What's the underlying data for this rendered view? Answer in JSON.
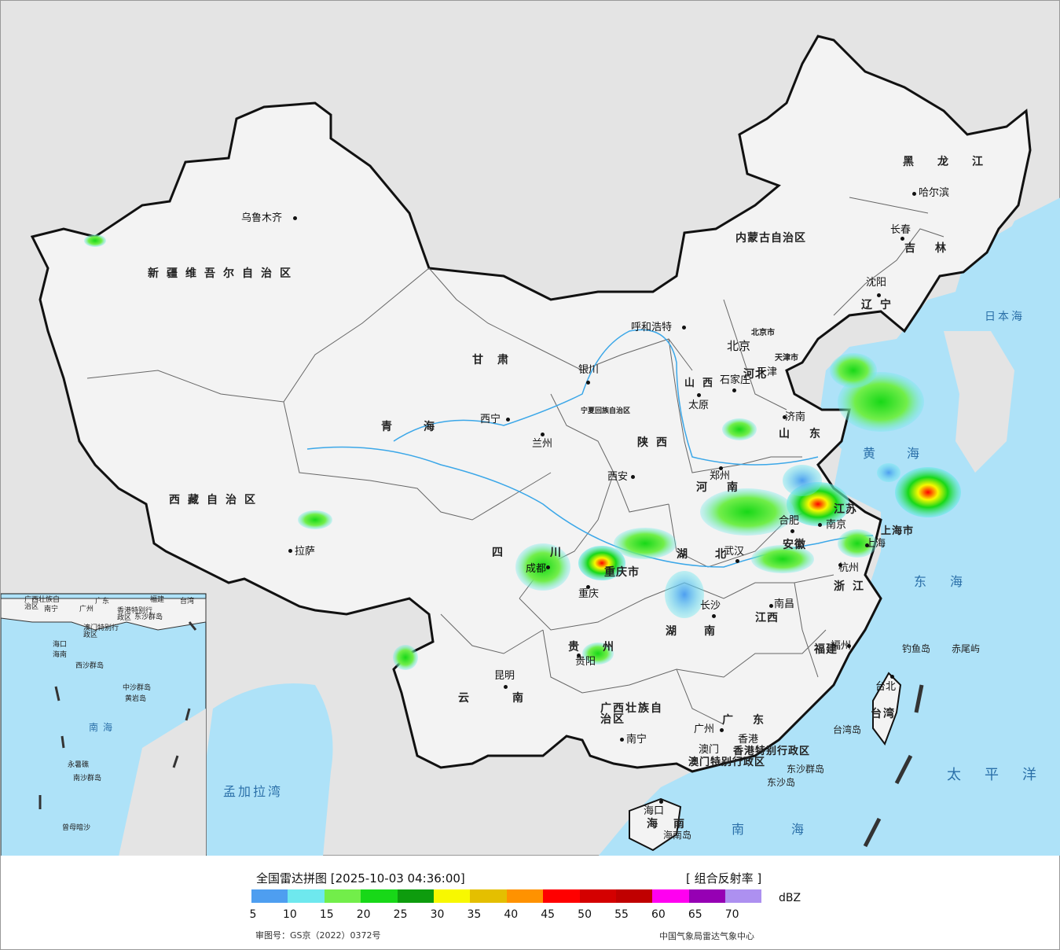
{
  "legend": {
    "title": "全国雷达拼图 [2025-10-03 04:36:00]",
    "product": "[ 组合反射率 ]",
    "unit": "dBZ",
    "scale_colors": [
      "#4e9ef0",
      "#6ee8ee",
      "#72ee4a",
      "#18d818",
      "#0e9c0e",
      "#f8f800",
      "#e4bf00",
      "#ff9200",
      "#ff0000",
      "#d40000",
      "#c00000",
      "#ff00f0",
      "#9600b4",
      "#ad90f0"
    ],
    "ticks": [
      "5",
      "10",
      "15",
      "20",
      "25",
      "30",
      "35",
      "40",
      "45",
      "50",
      "55",
      "60",
      "65",
      "70"
    ],
    "approval": "审图号：GS京（2022）0372号",
    "agency": "中国气象局雷达气象中心"
  },
  "colors": {
    "ocean": "#aee2f8",
    "land": "#f3f3f3",
    "foreign": "#e4e4e4",
    "border": "#111111"
  },
  "cities": [
    "乌鲁木齐",
    "拉萨",
    "西宁",
    "兰州",
    "银川",
    "呼和浩特",
    "北京",
    "天津",
    "石家庄",
    "太原",
    "济南",
    "郑州",
    "西安",
    "成都",
    "重庆",
    "贵阳",
    "昆明",
    "南宁",
    "广州",
    "澳门",
    "香港",
    "海口",
    "长沙",
    "武汉",
    "南昌",
    "合肥",
    "南京",
    "上海",
    "杭州",
    "福州",
    "台北",
    "沈阳",
    "长春",
    "哈尔滨"
  ],
  "provinces": [
    "新疆维吾尔自治区",
    "西藏自治区",
    "青海",
    "甘肃",
    "内蒙古自治区",
    "黑龙江",
    "吉林",
    "辽宁",
    "河北",
    "北京市",
    "天津市",
    "山西",
    "山东",
    "河南",
    "陕西",
    "宁夏回族自治区",
    "四川",
    "重庆市",
    "湖北",
    "安徽",
    "江苏",
    "上海市",
    "浙江",
    "江西",
    "湖南",
    "贵州",
    "云南",
    "广西壮族自治区",
    "广东",
    "福建",
    "台湾",
    "海南",
    "香港特别行政区",
    "澳门特别行政区"
  ],
  "seas": [
    "日本海",
    "黄海",
    "东海",
    "太平洋",
    "南海",
    "孟加拉湾",
    "南海"
  ],
  "islands": [
    "钓鱼岛",
    "赤尾屿",
    "台湾岛",
    "东沙群岛",
    "东沙岛",
    "海南岛"
  ],
  "inset": {
    "labels": [
      "广西壮族自治区",
      "广东",
      "福建",
      "台湾",
      "南宁",
      "广州",
      "香港特别行政区",
      "澳门特别行政区",
      "海口",
      "海南",
      "东沙群岛",
      "西沙群岛",
      "中沙群岛",
      "黄岩岛",
      "南海",
      "永暑礁",
      "南沙群岛",
      "曾母暗沙"
    ]
  }
}
